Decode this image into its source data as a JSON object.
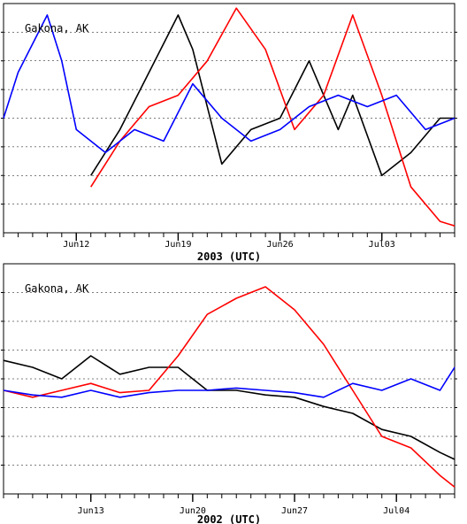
{
  "chart_data": [
    {
      "type": "line",
      "station": "Gakona, AK",
      "xlabel": "2003 (UTC)",
      "x_start": "2003-06-07",
      "x_end": "2003-07-08",
      "tick_labels": [
        "Jun12",
        "Jun19",
        "Jun26",
        "Jul03"
      ],
      "tick_dates": [
        "2003-06-12",
        "2003-06-19",
        "2003-06-26",
        "2003-07-03"
      ],
      "y_gridlines": 8,
      "series_colors": [
        "#000000",
        "#ff0000",
        "#0000ff"
      ],
      "series": [
        {
          "color": "#000000",
          "x": [
            "2003-06-07",
            "2003-06-10",
            "2003-06-12",
            "2003-06-13",
            "2003-06-15",
            "2003-06-17",
            "2003-06-19",
            "2003-06-20",
            "2003-06-22",
            "2003-06-24",
            "2003-06-26",
            "2003-06-28",
            "2003-06-30",
            "2003-07-01",
            "2003-07-03",
            "2003-07-05",
            "2003-07-07",
            "2003-07-08"
          ],
          "y": [
            null,
            null,
            null,
            0.25,
            0.45,
            0.7,
            0.95,
            0.8,
            0.3,
            0.45,
            0.5,
            0.75,
            0.45,
            0.6,
            0.25,
            0.35,
            0.5,
            0.5
          ]
        },
        {
          "color": "#ff0000",
          "x": [
            "2003-06-07",
            "2003-06-10",
            "2003-06-12",
            "2003-06-13",
            "2003-06-15",
            "2003-06-17",
            "2003-06-19",
            "2003-06-21",
            "2003-06-23",
            "2003-06-25",
            "2003-06-27",
            "2003-06-29",
            "2003-07-01",
            "2003-07-03",
            "2003-07-05",
            "2003-07-07",
            "2003-07-08"
          ],
          "y": [
            null,
            null,
            null,
            0.2,
            0.4,
            0.55,
            0.6,
            0.75,
            0.98,
            0.8,
            0.45,
            0.6,
            0.95,
            0.6,
            0.2,
            0.05,
            0.03
          ]
        },
        {
          "color": "#0000ff",
          "x": [
            "2003-06-07",
            "2003-06-08",
            "2003-06-10",
            "2003-06-11",
            "2003-06-12",
            "2003-06-14",
            "2003-06-16",
            "2003-06-18",
            "2003-06-20",
            "2003-06-22",
            "2003-06-24",
            "2003-06-26",
            "2003-06-28",
            "2003-06-30",
            "2003-07-02",
            "2003-07-04",
            "2003-07-06",
            "2003-07-08"
          ],
          "y": [
            0.5,
            0.7,
            0.95,
            0.75,
            0.45,
            0.35,
            0.45,
            0.4,
            0.65,
            0.5,
            0.4,
            0.45,
            0.55,
            0.6,
            0.55,
            0.6,
            0.45,
            0.5
          ]
        }
      ]
    },
    {
      "type": "line",
      "station": "Gakona, AK",
      "xlabel": "2002 (UTC)",
      "x_start": "2002-06-07",
      "x_end": "2002-07-08",
      "tick_labels": [
        "Jun13",
        "Jun20",
        "Jun27",
        "Jul04"
      ],
      "tick_dates": [
        "2002-06-13",
        "2002-06-20",
        "2002-06-27",
        "2002-07-04"
      ],
      "y_gridlines": 8,
      "series_colors": [
        "#000000",
        "#ff0000",
        "#0000ff"
      ],
      "series": [
        {
          "color": "#000000",
          "x": [
            "2002-06-07",
            "2002-06-09",
            "2002-06-11",
            "2002-06-13",
            "2002-06-15",
            "2002-06-17",
            "2002-06-19",
            "2002-06-21",
            "2002-06-23",
            "2002-06-25",
            "2002-06-27",
            "2002-06-29",
            "2002-07-01",
            "2002-07-03",
            "2002-07-05",
            "2002-07-07",
            "2002-07-08"
          ],
          "y": [
            0.58,
            0.55,
            0.5,
            0.6,
            0.52,
            0.55,
            0.55,
            0.45,
            0.45,
            0.43,
            0.42,
            0.38,
            0.35,
            0.28,
            0.25,
            0.18,
            0.15
          ]
        },
        {
          "color": "#ff0000",
          "x": [
            "2002-06-07",
            "2002-06-09",
            "2002-06-11",
            "2002-06-13",
            "2002-06-15",
            "2002-06-17",
            "2002-06-19",
            "2002-06-21",
            "2002-06-23",
            "2002-06-25",
            "2002-06-27",
            "2002-06-29",
            "2002-07-01",
            "2002-07-03",
            "2002-07-05",
            "2002-07-07",
            "2002-07-08"
          ],
          "y": [
            0.45,
            0.42,
            0.45,
            0.48,
            0.44,
            0.45,
            0.6,
            0.78,
            0.85,
            0.9,
            0.8,
            0.65,
            0.45,
            0.25,
            0.2,
            0.08,
            0.03
          ]
        },
        {
          "color": "#0000ff",
          "x": [
            "2002-06-07",
            "2002-06-09",
            "2002-06-11",
            "2002-06-13",
            "2002-06-15",
            "2002-06-17",
            "2002-06-19",
            "2002-06-21",
            "2002-06-23",
            "2002-06-25",
            "2002-06-27",
            "2002-06-29",
            "2002-07-01",
            "2002-07-03",
            "2002-07-05",
            "2002-07-07",
            "2002-07-08"
          ],
          "y": [
            0.45,
            0.43,
            0.42,
            0.45,
            0.42,
            0.44,
            0.45,
            0.45,
            0.46,
            0.45,
            0.44,
            0.42,
            0.48,
            0.45,
            0.5,
            0.45,
            0.55
          ]
        }
      ]
    }
  ]
}
